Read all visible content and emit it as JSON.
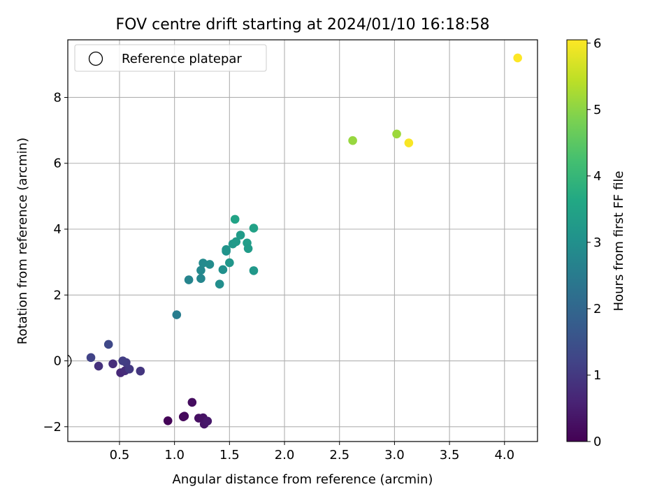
{
  "chart_data": {
    "type": "scatter",
    "title": "FOV centre drift starting at 2024/01/10 16:18:58",
    "xlabel": "Angular distance from reference (arcmin)",
    "ylabel": "Rotation from reference (arcmin)",
    "xlim": [
      0.03,
      4.3
    ],
    "ylim": [
      -2.45,
      9.75
    ],
    "xticks": [
      0.5,
      1.0,
      1.5,
      2.0,
      2.5,
      3.0,
      3.5,
      4.0
    ],
    "xtick_labels": [
      "0.5",
      "1.0",
      "1.5",
      "2.0",
      "2.5",
      "3.0",
      "3.5",
      "4.0"
    ],
    "yticks": [
      -2,
      0,
      2,
      4,
      6,
      8
    ],
    "ytick_labels": [
      "−2",
      "0",
      "2",
      "4",
      "6",
      "8"
    ],
    "grid": true,
    "legend": {
      "position": "top-left",
      "entries": [
        "Reference platepar"
      ]
    },
    "colorbar": {
      "label": "Hours from first FF file",
      "range": [
        0,
        6.05
      ],
      "colormap": "viridis",
      "ticks": [
        0,
        1,
        2,
        3,
        4,
        5,
        6
      ],
      "tick_labels": [
        "0",
        "1",
        "2",
        "3",
        "4",
        "5",
        "6"
      ]
    },
    "reference_point": {
      "x": 0,
      "y": 0
    },
    "points": [
      {
        "x": 0.94,
        "y": -1.82,
        "c": 0.05
      },
      {
        "x": 1.08,
        "y": -1.7,
        "c": 0.1
      },
      {
        "x": 1.09,
        "y": -1.68,
        "c": 0.15
      },
      {
        "x": 1.16,
        "y": -1.26,
        "c": 0.2
      },
      {
        "x": 1.22,
        "y": -1.74,
        "c": 0.25
      },
      {
        "x": 1.26,
        "y": -1.73,
        "c": 0.3
      },
      {
        "x": 1.27,
        "y": -1.92,
        "c": 0.35
      },
      {
        "x": 1.3,
        "y": -1.83,
        "c": 0.4
      },
      {
        "x": 0.51,
        "y": -0.36,
        "c": 0.7
      },
      {
        "x": 0.55,
        "y": -0.3,
        "c": 0.75
      },
      {
        "x": 0.44,
        "y": -0.09,
        "c": 0.8
      },
      {
        "x": 0.31,
        "y": -0.16,
        "c": 0.85
      },
      {
        "x": 0.69,
        "y": -0.31,
        "c": 0.95
      },
      {
        "x": 0.59,
        "y": -0.25,
        "c": 1.0
      },
      {
        "x": 0.56,
        "y": -0.05,
        "c": 1.05
      },
      {
        "x": 0.53,
        "y": 0.0,
        "c": 1.1
      },
      {
        "x": 0.24,
        "y": 0.1,
        "c": 1.2
      },
      {
        "x": 0.4,
        "y": 0.5,
        "c": 1.3
      },
      {
        "x": 1.02,
        "y": 1.4,
        "c": 2.55
      },
      {
        "x": 1.13,
        "y": 2.46,
        "c": 2.7
      },
      {
        "x": 1.24,
        "y": 2.5,
        "c": 2.75
      },
      {
        "x": 1.24,
        "y": 2.75,
        "c": 2.8
      },
      {
        "x": 1.26,
        "y": 2.97,
        "c": 2.85
      },
      {
        "x": 1.32,
        "y": 2.93,
        "c": 2.9
      },
      {
        "x": 1.41,
        "y": 2.33,
        "c": 2.95
      },
      {
        "x": 1.44,
        "y": 2.77,
        "c": 3.0
      },
      {
        "x": 1.47,
        "y": 3.33,
        "c": 3.05
      },
      {
        "x": 1.47,
        "y": 3.38,
        "c": 3.1
      },
      {
        "x": 1.5,
        "y": 2.98,
        "c": 3.15
      },
      {
        "x": 1.53,
        "y": 3.55,
        "c": 3.2
      },
      {
        "x": 1.56,
        "y": 3.62,
        "c": 3.25
      },
      {
        "x": 1.6,
        "y": 3.82,
        "c": 3.3
      },
      {
        "x": 1.66,
        "y": 3.58,
        "c": 3.35
      },
      {
        "x": 1.67,
        "y": 3.41,
        "c": 3.3
      },
      {
        "x": 1.72,
        "y": 2.74,
        "c": 3.2
      },
      {
        "x": 1.72,
        "y": 4.03,
        "c": 3.45
      },
      {
        "x": 1.55,
        "y": 4.3,
        "c": 3.5
      },
      {
        "x": 2.62,
        "y": 6.69,
        "c": 5.1
      },
      {
        "x": 3.02,
        "y": 6.89,
        "c": 5.15
      },
      {
        "x": 3.13,
        "y": 6.62,
        "c": 6.0
      },
      {
        "x": 4.12,
        "y": 9.2,
        "c": 6.05
      }
    ]
  }
}
